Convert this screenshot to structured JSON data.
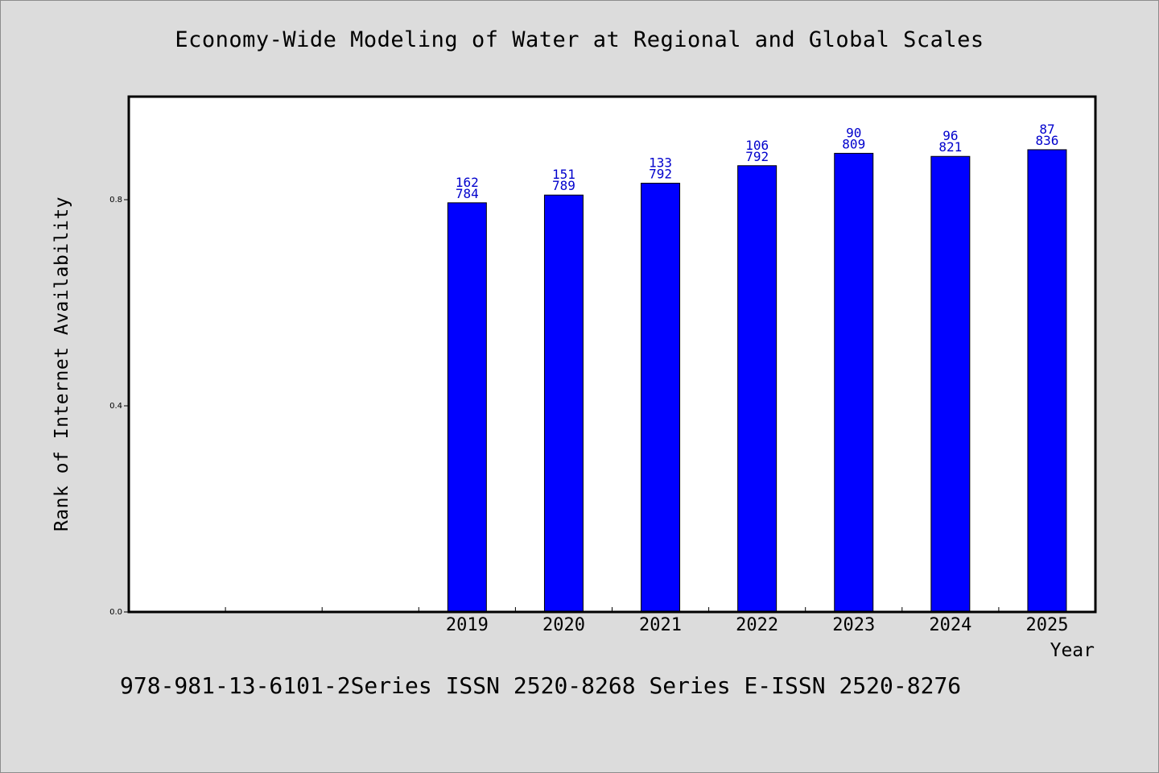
{
  "chart_data": {
    "type": "bar",
    "title": "Economy-Wide Modeling of Water at Regional and Global Scales",
    "xlabel": "Year",
    "ylabel": "Rank of Internet Availability",
    "categories": [
      "",
      "",
      "",
      "2019",
      "2020",
      "2021",
      "2022",
      "2023",
      "2024",
      "2025"
    ],
    "values": [
      null,
      null,
      null,
      0.794,
      0.809,
      0.832,
      0.866,
      0.89,
      0.884,
      0.897
    ],
    "labels_rank": [
      null,
      null,
      null,
      "162",
      "151",
      "133",
      "106",
      "90",
      "96",
      "87"
    ],
    "labels_score": [
      null,
      null,
      null,
      "784",
      "789",
      "792",
      "792",
      "809",
      "821",
      "836"
    ],
    "yticks": [
      "0.0",
      "0.4",
      "0.8"
    ],
    "ylim": [
      0,
      1.0
    ],
    "grid": false,
    "bar_color": "#0000ff",
    "label_color": "#0000cc"
  },
  "footer": {
    "text": "978-981-13-6101-2Series ISSN 2520-8268 Series E-ISSN 2520-8276"
  }
}
